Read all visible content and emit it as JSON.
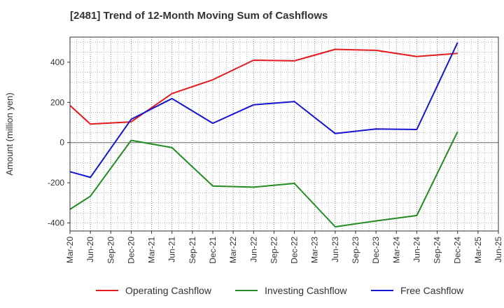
{
  "chart_data": {
    "type": "line",
    "title": "[2481]  Trend of 12-Month Moving Sum of Cashflows",
    "ylabel": "Amount (million yen)",
    "xlabel": "",
    "ylim": [
      -440,
      525
    ],
    "yticks": [
      -400,
      -200,
      0,
      200,
      400
    ],
    "categories": [
      "Mar-20",
      "Jun-20",
      "Sep-20",
      "Dec-20",
      "Mar-21",
      "Jun-21",
      "Sep-21",
      "Dec-21",
      "Mar-22",
      "Jun-22",
      "Sep-22",
      "Dec-22",
      "Mar-23",
      "Jun-23",
      "Sep-23",
      "Dec-23",
      "Mar-24",
      "Jun-24",
      "Sep-24",
      "Dec-24",
      "Mar-25",
      "Jun-25"
    ],
    "grid": true,
    "legend_position": "bottom",
    "series": [
      {
        "name": "Operating Cashflow",
        "color": "#e41a1c",
        "values": [
          185,
          92,
          null,
          103,
          null,
          244,
          null,
          313,
          null,
          410,
          null,
          407,
          null,
          464,
          null,
          459,
          null,
          428,
          null,
          444,
          null,
          null
        ]
      },
      {
        "name": "Investing Cashflow",
        "color": "#228b22",
        "values": [
          -332,
          -267,
          null,
          11,
          null,
          -25,
          null,
          -216,
          null,
          -222,
          null,
          -203,
          null,
          -419,
          null,
          -390,
          null,
          -363,
          null,
          54,
          null,
          null
        ]
      },
      {
        "name": "Free Cashflow",
        "color": "#1414d2",
        "values": [
          -145,
          -173,
          null,
          116,
          null,
          219,
          null,
          96,
          null,
          188,
          null,
          204,
          null,
          45,
          null,
          68,
          null,
          65,
          null,
          498,
          null,
          null
        ]
      }
    ]
  }
}
